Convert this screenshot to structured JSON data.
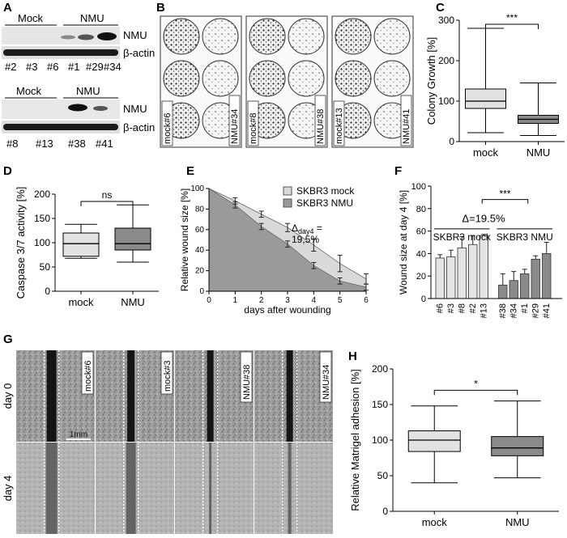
{
  "panels": {
    "A": {
      "label": "A",
      "blot1": {
        "group_left": "Mock",
        "group_right": "NMU",
        "band1": "NMU",
        "band2": "β-actin",
        "lanes": [
          "#2",
          "#3",
          "#6",
          "#1",
          "#29",
          "#34"
        ]
      },
      "blot2": {
        "group_left": "Mock",
        "group_right": "NMU",
        "band1": "NMU",
        "band2": "β-actin",
        "lanes": [
          "#8",
          "#13",
          "#38",
          "#41"
        ]
      }
    },
    "B": {
      "label": "B",
      "plates": [
        {
          "left": "mock#6",
          "right": "NMU#34"
        },
        {
          "left": "mock#8",
          "right": "NMU#38"
        },
        {
          "left": "mock#13",
          "right": "NMU#41"
        }
      ]
    },
    "C": {
      "label": "C",
      "significance": "***"
    },
    "D": {
      "label": "D",
      "significance": "ns"
    },
    "E": {
      "label": "E",
      "legend": [
        "SKBR3 mock",
        "SKBR3 NMU"
      ],
      "delta_text": "Δday4 =",
      "delta_value": "19,5%"
    },
    "F": {
      "label": "F",
      "significance": "***",
      "delta": "Δ=19.5%",
      "group_left": "SKBR3 mock",
      "group_right": "SKBR3 NMU"
    },
    "G": {
      "label": "G",
      "row_labels": [
        "day 0",
        "day 4"
      ],
      "columns": [
        "mock#6",
        "mock#3",
        "NMU#38",
        "NMU#34"
      ],
      "scale_bar": "1mm"
    },
    "H": {
      "label": "H",
      "significance": "*"
    }
  },
  "chart_data": [
    {
      "panel": "C",
      "type": "box",
      "ylabel": "Colony Growth [%]",
      "ylim": [
        0,
        300
      ],
      "yticks": [
        0,
        100,
        200,
        300
      ],
      "categories": [
        "mock",
        "NMU"
      ],
      "boxes": [
        {
          "name": "mock",
          "min": 22,
          "q1": 82,
          "median": 100,
          "q3": 130,
          "max": 280
        },
        {
          "name": "NMU",
          "min": 15,
          "q1": 45,
          "median": 55,
          "q3": 65,
          "max": 145
        }
      ],
      "colors": [
        "#e2e2e2",
        "#8a8a8a"
      ]
    },
    {
      "panel": "D",
      "type": "box",
      "ylabel": "Caspase 3/7 activity [%]",
      "ylim": [
        0,
        200
      ],
      "yticks": [
        0,
        50,
        100,
        150,
        200
      ],
      "categories": [
        "mock",
        "NMU"
      ],
      "boxes": [
        {
          "name": "mock",
          "min": 68,
          "q1": 72,
          "median": 98,
          "q3": 120,
          "max": 138
        },
        {
          "name": "NMU",
          "min": 60,
          "q1": 85,
          "median": 98,
          "q3": 130,
          "max": 178
        }
      ],
      "colors": [
        "#e2e2e2",
        "#8a8a8a"
      ]
    },
    {
      "panel": "E",
      "type": "area",
      "xlabel": "days after wounding",
      "ylabel": "Relative wound size [%]",
      "xlim": [
        0,
        6
      ],
      "ylim": [
        0,
        100
      ],
      "xticks": [
        0,
        1,
        2,
        3,
        4,
        5,
        6
      ],
      "yticks": [
        0,
        20,
        40,
        60,
        80,
        100
      ],
      "x": [
        0,
        1,
        2,
        3,
        4,
        5,
        6
      ],
      "series": [
        {
          "name": "SKBR3 mock",
          "values": [
            100,
            88,
            75,
            62,
            45,
            27,
            12
          ],
          "errors": [
            0,
            3,
            3,
            4,
            6,
            8,
            5
          ],
          "color": "#d9d9d9"
        },
        {
          "name": "SKBR3 NMU",
          "values": [
            100,
            84,
            63,
            46,
            25,
            10,
            4
          ],
          "errors": [
            0,
            3,
            3,
            3,
            3,
            3,
            3
          ],
          "color": "#9a9a9a"
        }
      ]
    },
    {
      "panel": "F",
      "type": "bar",
      "ylabel": "Wound size at day 4 [%]",
      "ylim": [
        0,
        100
      ],
      "yticks": [
        0,
        20,
        40,
        60,
        80,
        100
      ],
      "categories": [
        "#6",
        "#3",
        "#8",
        "#2",
        "#13",
        "#38",
        "#34",
        "#1",
        "#29",
        "#41"
      ],
      "values": [
        36,
        37,
        45,
        48,
        56,
        12,
        16,
        22,
        35,
        40
      ],
      "errors": [
        3,
        6,
        10,
        8,
        1,
        10,
        8,
        4,
        3,
        10
      ],
      "colors": [
        "#e4e4e4",
        "#e4e4e4",
        "#e4e4e4",
        "#e4e4e4",
        "#e4e4e4",
        "#8a8a8a",
        "#8a8a8a",
        "#8a8a8a",
        "#8a8a8a",
        "#8a8a8a"
      ]
    },
    {
      "panel": "H",
      "type": "box",
      "ylabel": "Relative Matrigel adhesion [%]",
      "ylim": [
        0,
        200
      ],
      "yticks": [
        0,
        50,
        100,
        150,
        200
      ],
      "categories": [
        "mock",
        "NMU"
      ],
      "boxes": [
        {
          "name": "mock",
          "min": 40,
          "q1": 84,
          "median": 100,
          "q3": 113,
          "max": 148
        },
        {
          "name": "NMU",
          "min": 47,
          "q1": 78,
          "median": 89,
          "q3": 105,
          "max": 155
        }
      ],
      "colors": [
        "#e2e2e2",
        "#8a8a8a"
      ]
    }
  ]
}
